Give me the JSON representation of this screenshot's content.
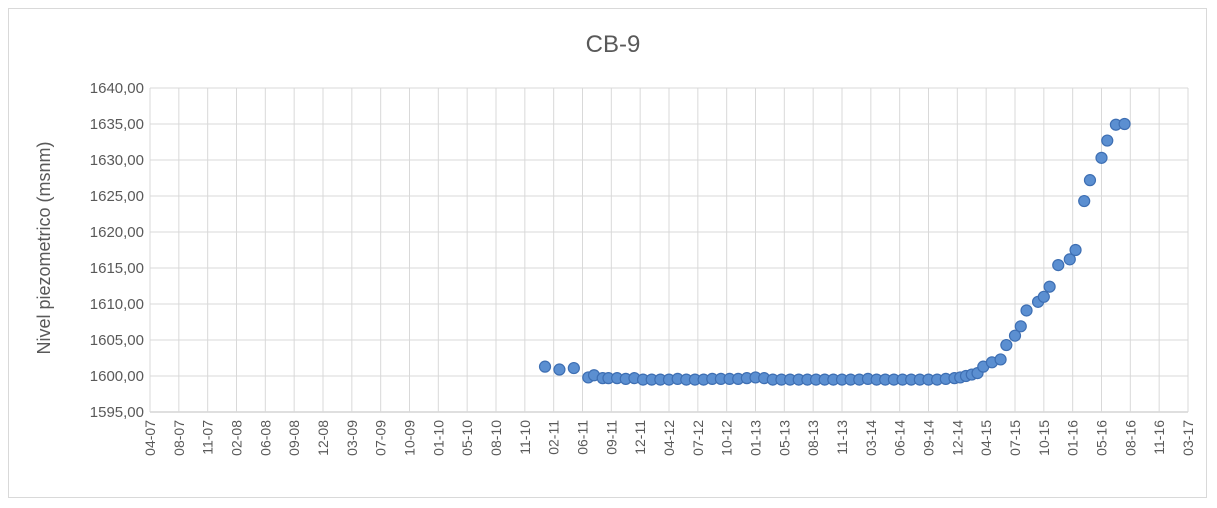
{
  "chart_data": {
    "type": "scatter",
    "title": "CB-9",
    "xlabel": "",
    "ylabel": "Nivel piezometrico (msnm)",
    "ylim": [
      1595,
      1640
    ],
    "y_ticks": [
      "1595,00",
      "1600,00",
      "1605,00",
      "1610,00",
      "1615,00",
      "1620,00",
      "1625,00",
      "1630,00",
      "1635,00",
      "1640,00"
    ],
    "x_ticks": [
      "04-07",
      "08-07",
      "11-07",
      "02-08",
      "06-08",
      "09-08",
      "12-08",
      "03-09",
      "07-09",
      "10-09",
      "01-10",
      "05-10",
      "08-10",
      "11-10",
      "02-11",
      "06-11",
      "09-11",
      "12-11",
      "04-12",
      "07-12",
      "10-12",
      "01-13",
      "05-13",
      "08-13",
      "11-13",
      "03-14",
      "06-14",
      "09-14",
      "12-14",
      "04-15",
      "07-15",
      "10-15",
      "01-16",
      "05-16",
      "08-16",
      "11-16",
      "03-17"
    ],
    "grid": true,
    "legend": "none",
    "marker_color": "#5b8fd1",
    "marker_edge_color": "#3e6fb3",
    "series": [
      {
        "x": [
          13.7,
          14.2,
          14.7,
          15.2,
          15.4,
          15.7,
          15.9,
          16.2,
          16.5,
          16.8,
          17.1,
          17.4,
          17.7,
          18.0,
          18.3,
          18.6,
          18.9,
          19.2,
          19.5,
          19.8,
          20.1,
          20.4,
          20.7,
          21.0,
          21.3,
          21.6,
          21.9,
          22.2,
          22.5,
          22.8,
          23.1,
          23.4,
          23.7,
          24.0,
          24.3,
          24.6,
          24.9,
          25.2,
          25.5,
          25.8,
          26.1,
          26.4,
          26.7,
          27.0,
          27.3,
          27.6,
          27.9,
          28.1,
          28.3,
          28.5,
          28.7,
          28.9,
          29.2,
          29.5,
          29.7,
          30.0,
          30.2,
          30.4,
          30.8,
          31.0,
          31.2,
          31.5,
          31.9,
          32.1,
          32.4,
          32.6,
          33.0,
          33.2,
          33.5,
          33.8
        ],
        "y": [
          1601.3,
          1600.9,
          1601.1,
          1599.8,
          1600.1,
          1599.7,
          1599.7,
          1599.7,
          1599.6,
          1599.7,
          1599.5,
          1599.5,
          1599.5,
          1599.5,
          1599.6,
          1599.5,
          1599.5,
          1599.5,
          1599.6,
          1599.6,
          1599.6,
          1599.6,
          1599.7,
          1599.8,
          1599.7,
          1599.5,
          1599.5,
          1599.5,
          1599.5,
          1599.5,
          1599.5,
          1599.5,
          1599.5,
          1599.5,
          1599.5,
          1599.5,
          1599.6,
          1599.5,
          1599.5,
          1599.5,
          1599.5,
          1599.5,
          1599.5,
          1599.5,
          1599.5,
          1599.6,
          1599.7,
          1599.8,
          1600.0,
          1600.2,
          1600.4,
          1601.3,
          1601.9,
          1602.3,
          1604.3,
          1605.6,
          1606.9,
          1609.1,
          1610.3,
          1611.0,
          1612.4,
          1615.4,
          1616.2,
          1617.5,
          1624.3,
          1627.2,
          1630.3,
          1632.7,
          1634.9,
          1635.0
        ]
      }
    ]
  }
}
